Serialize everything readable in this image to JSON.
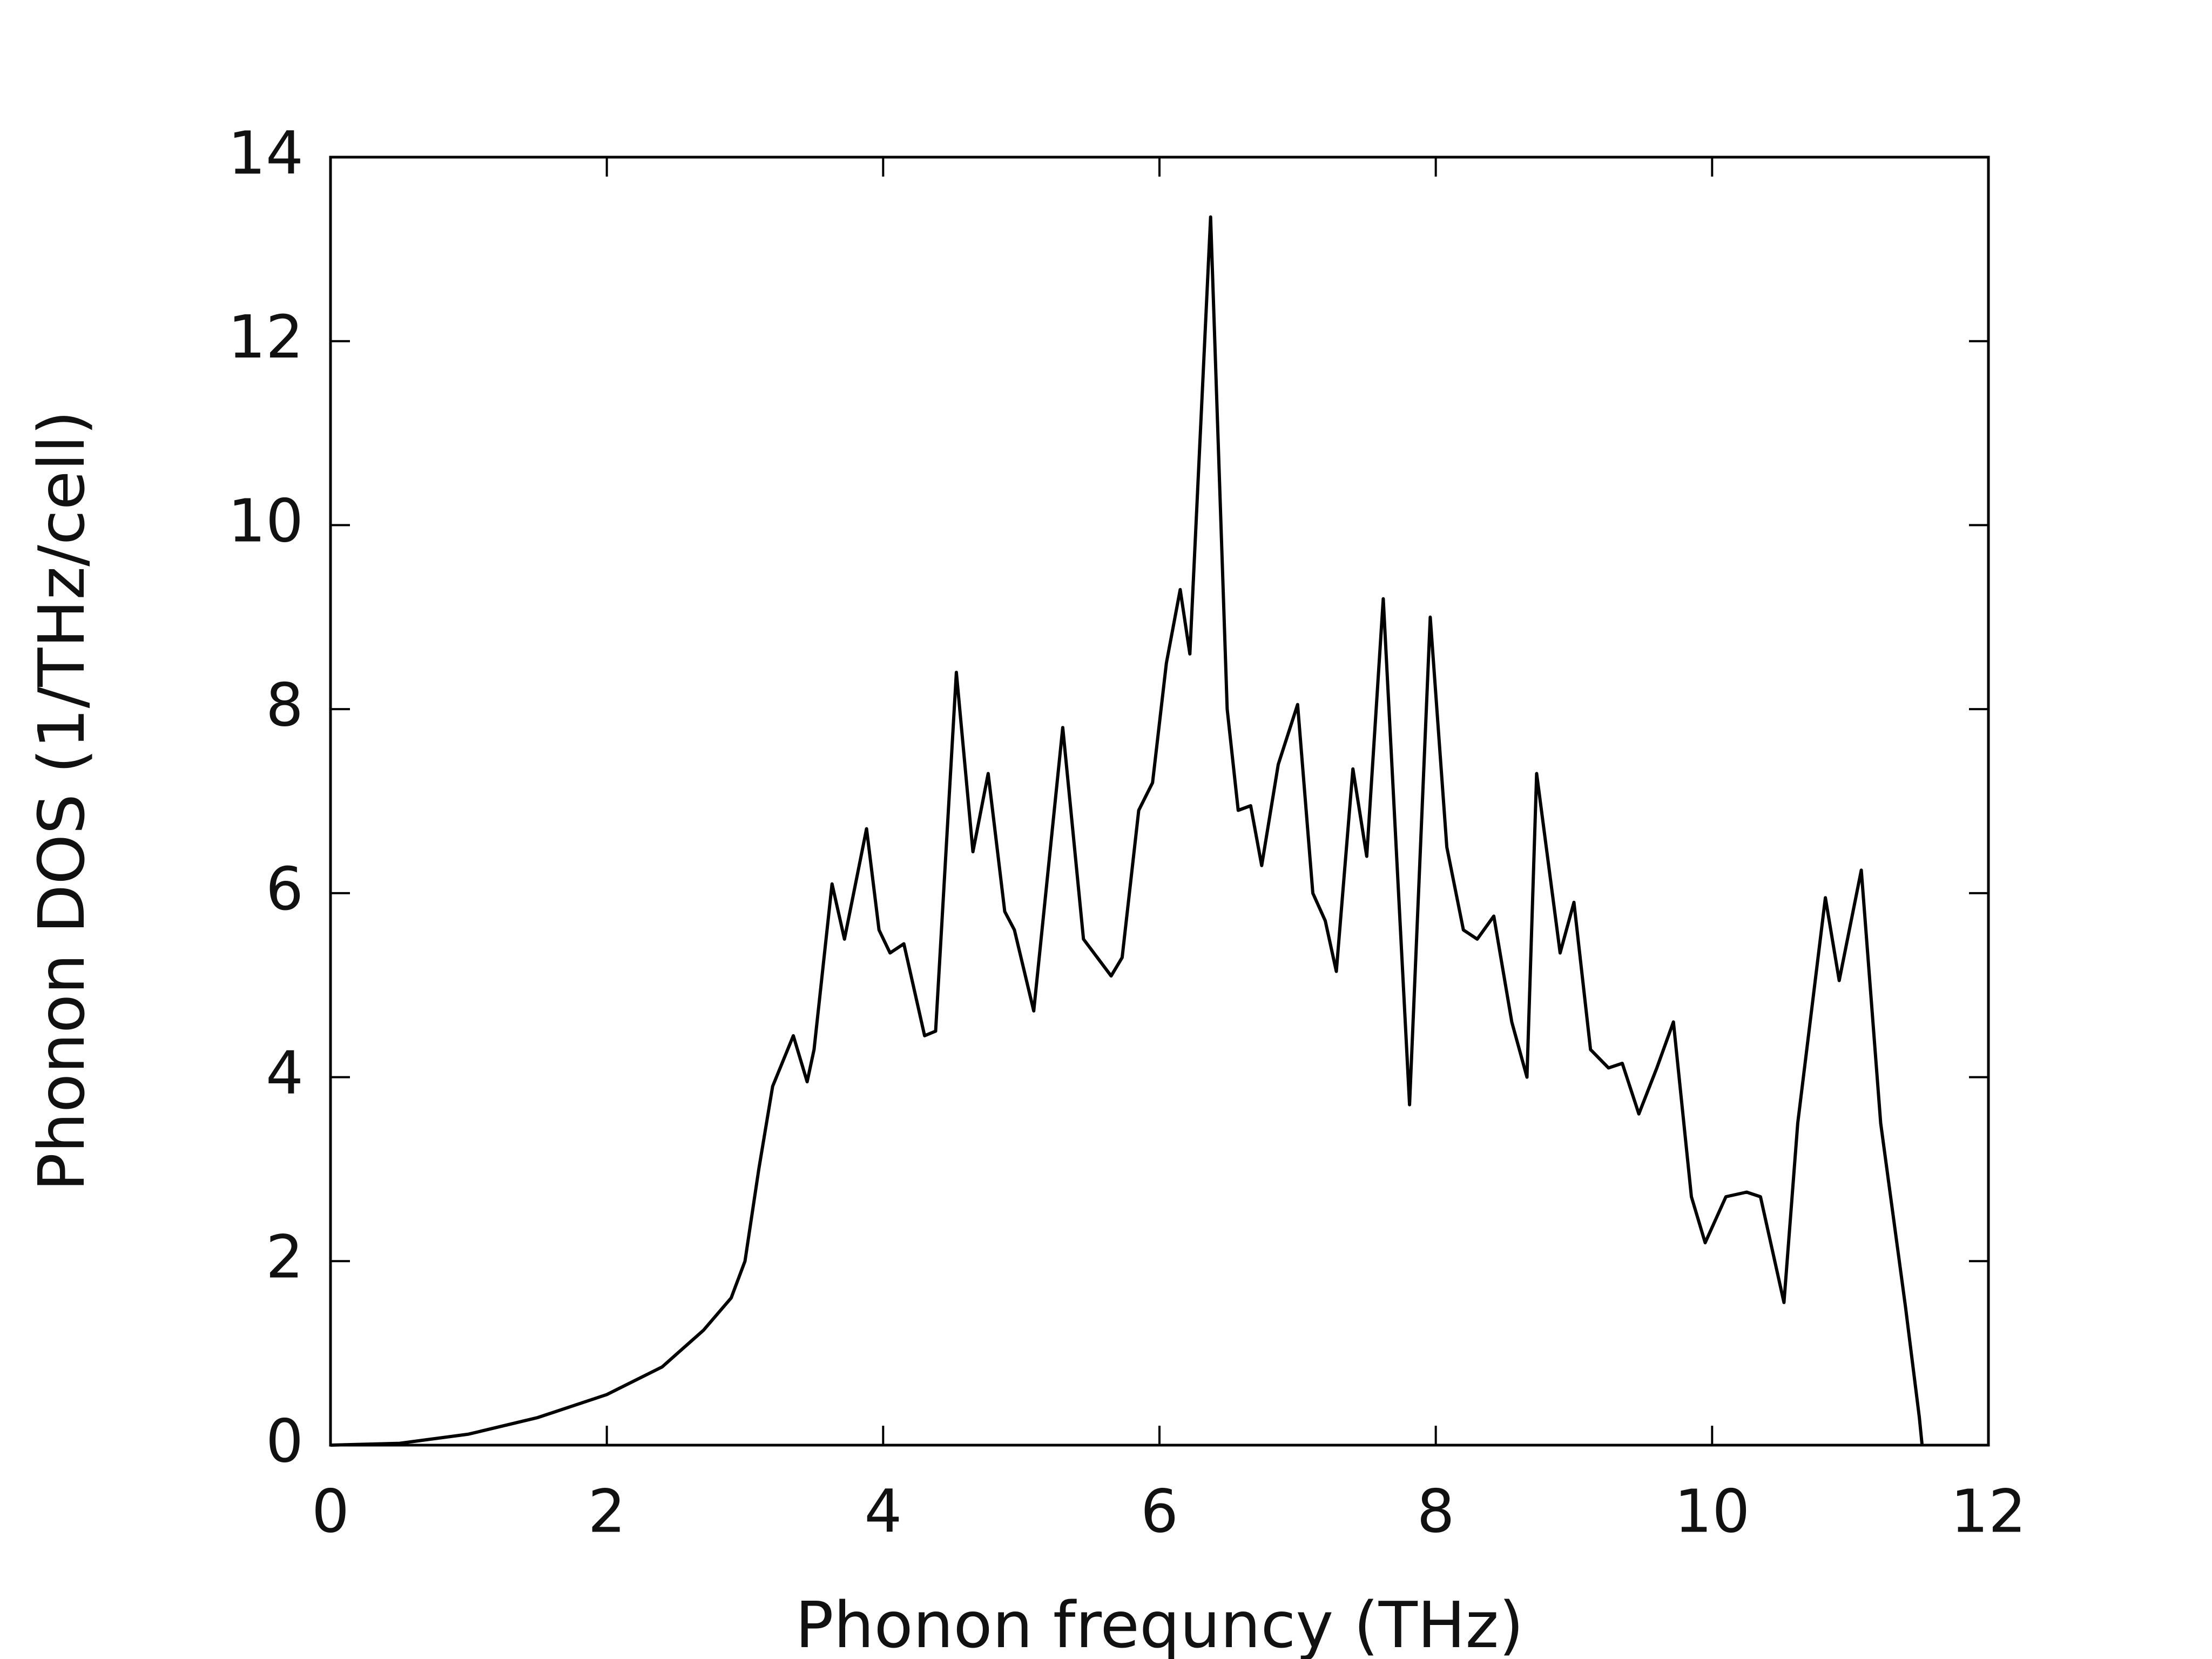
{
  "chart_data": {
    "type": "line",
    "x_label": "Phonon frequncy (THz)",
    "y_label": "Phonon DOS (1/THz/cell)",
    "xlim": [
      0,
      12
    ],
    "ylim": [
      0,
      14
    ],
    "xticks": [
      0,
      2,
      4,
      6,
      8,
      10,
      12
    ],
    "yticks": [
      0,
      2,
      4,
      6,
      8,
      10,
      12,
      14
    ],
    "grid": false,
    "series": [
      {
        "color": "#000000",
        "x": [
          0,
          0.5,
          1.0,
          1.5,
          2.0,
          2.4,
          2.7,
          2.9,
          3.0,
          3.1,
          3.2,
          3.35,
          3.45,
          3.5,
          3.63,
          3.72,
          3.88,
          3.97,
          4.05,
          4.15,
          4.3,
          4.38,
          4.53,
          4.65,
          4.76,
          4.88,
          4.95,
          5.09,
          5.3,
          5.45,
          5.55,
          5.65,
          5.73,
          5.85,
          5.95,
          6.05,
          6.15,
          6.22,
          6.37,
          6.49,
          6.57,
          6.66,
          6.74,
          6.86,
          7.0,
          7.11,
          7.2,
          7.28,
          7.4,
          7.5,
          7.62,
          7.81,
          7.96,
          8.08,
          8.2,
          8.3,
          8.42,
          8.55,
          8.66,
          8.73,
          8.9,
          9.0,
          9.12,
          9.25,
          9.35,
          9.47,
          9.6,
          9.72,
          9.85,
          9.95,
          10.1,
          10.25,
          10.35,
          10.52,
          10.62,
          10.82,
          10.92,
          11.08,
          11.22,
          11.4,
          11.5,
          11.52
        ],
        "values": [
          0,
          0.02,
          0.12,
          0.3,
          0.55,
          0.85,
          1.25,
          1.6,
          2.0,
          3.0,
          3.9,
          4.45,
          3.95,
          4.3,
          6.1,
          5.5,
          6.7,
          5.6,
          5.35,
          5.45,
          4.45,
          4.5,
          8.4,
          6.45,
          7.3,
          5.8,
          5.6,
          4.72,
          7.8,
          5.5,
          5.3,
          5.1,
          5.3,
          6.9,
          7.2,
          8.5,
          9.3,
          8.6,
          13.35,
          8.0,
          6.9,
          6.95,
          6.3,
          7.4,
          8.05,
          6.0,
          5.7,
          5.15,
          7.35,
          6.4,
          9.2,
          3.7,
          9.0,
          6.5,
          5.6,
          5.5,
          5.75,
          4.6,
          4.0,
          7.3,
          5.35,
          5.9,
          4.3,
          4.1,
          4.15,
          3.6,
          4.1,
          4.6,
          2.7,
          2.2,
          2.7,
          2.75,
          2.7,
          1.55,
          3.5,
          5.95,
          5.05,
          6.25,
          3.5,
          1.5,
          0.3,
          0
        ]
      }
    ]
  }
}
